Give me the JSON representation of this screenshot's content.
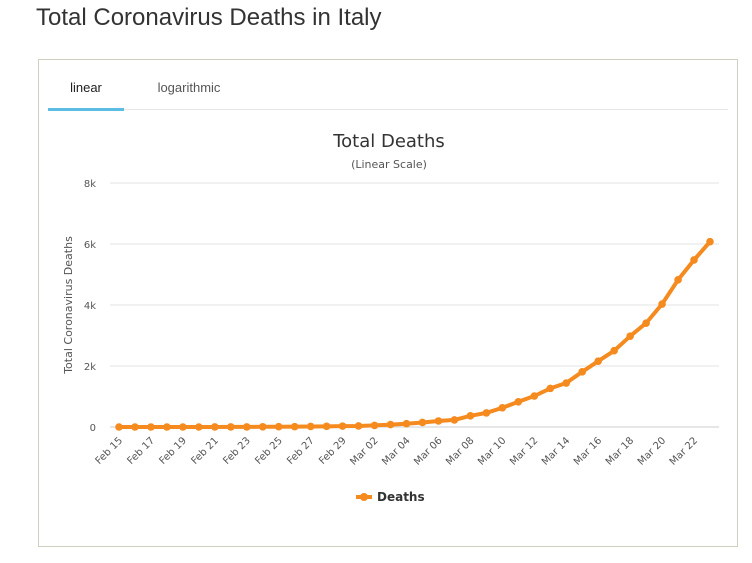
{
  "page": {
    "title": "Total Coronavirus Deaths in Italy"
  },
  "tabs": [
    {
      "label": "linear",
      "active": true
    },
    {
      "label": "logarithmic",
      "active": false
    }
  ],
  "chart_data": {
    "type": "line",
    "title": "Total Deaths",
    "subtitle": "(Linear Scale)",
    "xlabel": "",
    "ylabel": "Total Coronavirus Deaths",
    "ylim": [
      0,
      8000
    ],
    "yticks": [
      0,
      2000,
      4000,
      6000,
      8000
    ],
    "ytick_labels": [
      "0",
      "2k",
      "4k",
      "6k",
      "8k"
    ],
    "x": [
      "Feb 15",
      "Feb 16",
      "Feb 17",
      "Feb 18",
      "Feb 19",
      "Feb 20",
      "Feb 21",
      "Feb 22",
      "Feb 23",
      "Feb 24",
      "Feb 25",
      "Feb 26",
      "Feb 27",
      "Feb 28",
      "Feb 29",
      "Mar 01",
      "Mar 02",
      "Mar 03",
      "Mar 04",
      "Mar 05",
      "Mar 06",
      "Mar 07",
      "Mar 08",
      "Mar 09",
      "Mar 10",
      "Mar 11",
      "Mar 12",
      "Mar 13",
      "Mar 14",
      "Mar 15",
      "Mar 16",
      "Mar 17",
      "Mar 18",
      "Mar 19",
      "Mar 20",
      "Mar 21",
      "Mar 22",
      "Mar 23"
    ],
    "xtick_labels": [
      "Feb 15",
      "Feb 17",
      "Feb 19",
      "Feb 21",
      "Feb 23",
      "Feb 25",
      "Feb 27",
      "Feb 29",
      "Mar 02",
      "Mar 04",
      "Mar 06",
      "Mar 08",
      "Mar 10",
      "Mar 12",
      "Mar 14",
      "Mar 16",
      "Mar 18",
      "Mar 20",
      "Mar 22"
    ],
    "series": [
      {
        "name": "Deaths",
        "color": "#f58a1f",
        "values": [
          0,
          0,
          0,
          0,
          0,
          0,
          1,
          2,
          3,
          7,
          10,
          12,
          17,
          21,
          29,
          34,
          52,
          79,
          107,
          148,
          197,
          233,
          366,
          463,
          631,
          827,
          1016,
          1266,
          1441,
          1809,
          2158,
          2503,
          2978,
          3405,
          4032,
          4825,
          5476,
          6077
        ]
      }
    ],
    "legend": {
      "position": "bottom",
      "entries": [
        "Deaths"
      ]
    },
    "grid": true
  }
}
